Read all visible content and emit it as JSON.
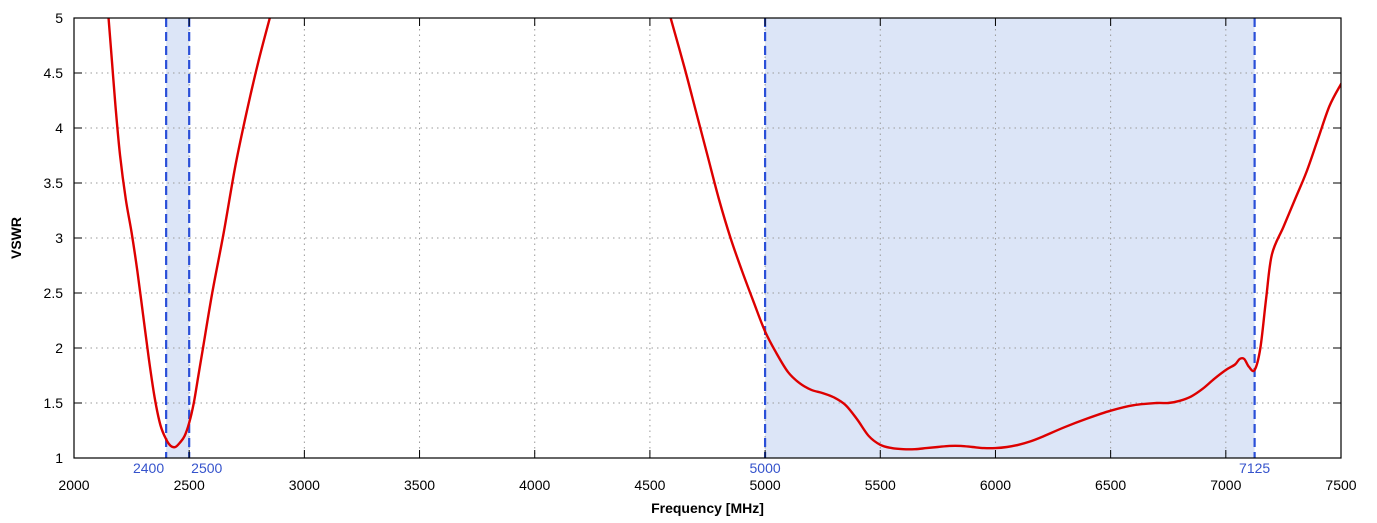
{
  "chart_data": {
    "type": "line",
    "title": "",
    "xlabel": "Frequency [MHz]",
    "ylabel": "VSWR",
    "xlim": [
      2000,
      7500
    ],
    "ylim": [
      1,
      5
    ],
    "x_ticks": [
      2000,
      2500,
      3000,
      3500,
      4000,
      4500,
      5000,
      5500,
      6000,
      6500,
      7000,
      7500
    ],
    "x_tick_labels": [
      "2000",
      "2500",
      "3000",
      "3500",
      "4000",
      "4500",
      "5000",
      "5500",
      "6000",
      "6500",
      "7000",
      "7500"
    ],
    "y_ticks": [
      1,
      1.5,
      2,
      2.5,
      3,
      3.5,
      4,
      4.5,
      5
    ],
    "y_tick_labels": [
      "1",
      "1.5",
      "2",
      "2.5",
      "3",
      "3.5",
      "4",
      "4.5",
      "5"
    ],
    "grid": true,
    "legend": "none",
    "colors": {
      "series": "#dd0000",
      "band_fill": "#dce5f7",
      "band_line": "#2a4fd8",
      "band_label": "#3553cc",
      "grid": "#9a9a9a"
    },
    "bands": [
      {
        "from": 2400,
        "to": 2500,
        "from_label": "2400",
        "to_label": "2500"
      },
      {
        "from": 5000,
        "to": 7125,
        "from_label": "5000",
        "to_label": "7125"
      }
    ],
    "series": [
      {
        "x": [
          2150,
          2165,
          2180,
          2200,
          2225,
          2250,
          2275,
          2300,
          2325,
          2350,
          2375,
          2400,
          2420,
          2440,
          2460,
          2480,
          2500,
          2520,
          2540,
          2560,
          2600,
          2650,
          2700,
          2750,
          2800,
          2850
        ],
        "values": [
          5.0,
          4.6,
          4.2,
          3.75,
          3.35,
          3.05,
          2.7,
          2.3,
          1.9,
          1.55,
          1.3,
          1.17,
          1.11,
          1.1,
          1.14,
          1.2,
          1.32,
          1.5,
          1.75,
          2.0,
          2.5,
          3.05,
          3.65,
          4.15,
          4.6,
          5.0
        ]
      },
      {
        "x": [
          4590,
          4650,
          4700,
          4750,
          4800,
          4850,
          4900,
          4950,
          5000,
          5050,
          5100,
          5150,
          5200,
          5250,
          5300,
          5350,
          5400,
          5450,
          5500,
          5550,
          5600,
          5650,
          5700,
          5750,
          5800,
          5850,
          5900,
          5950,
          6000,
          6050,
          6100,
          6150,
          6200,
          6300,
          6400,
          6500,
          6600,
          6700,
          6750,
          6800,
          6850,
          6900,
          6950,
          7000,
          7040,
          7060,
          7080,
          7100,
          7125,
          7150,
          7175,
          7200,
          7250,
          7300,
          7350,
          7400,
          7450,
          7500
        ],
        "values": [
          5.0,
          4.55,
          4.15,
          3.75,
          3.35,
          3.0,
          2.7,
          2.42,
          2.15,
          1.95,
          1.78,
          1.68,
          1.62,
          1.59,
          1.55,
          1.48,
          1.35,
          1.2,
          1.12,
          1.09,
          1.08,
          1.08,
          1.09,
          1.1,
          1.11,
          1.11,
          1.1,
          1.09,
          1.09,
          1.1,
          1.12,
          1.15,
          1.19,
          1.28,
          1.36,
          1.43,
          1.48,
          1.5,
          1.5,
          1.52,
          1.56,
          1.63,
          1.72,
          1.8,
          1.85,
          1.9,
          1.9,
          1.83,
          1.8,
          2.0,
          2.45,
          2.85,
          3.1,
          3.35,
          3.6,
          3.9,
          4.2,
          4.4
        ]
      }
    ]
  }
}
